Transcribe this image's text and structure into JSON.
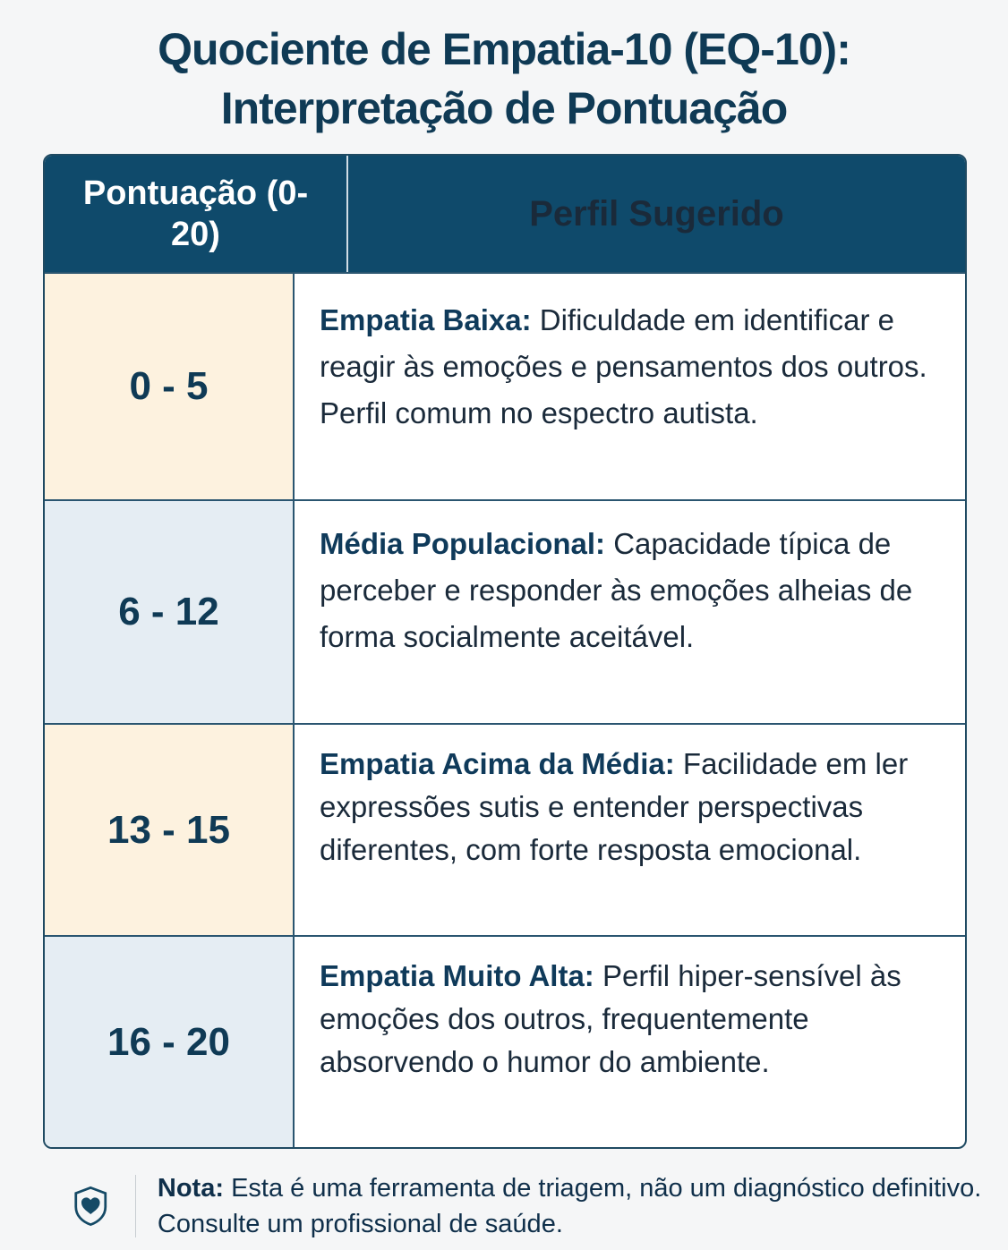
{
  "title": {
    "line1": "Quociente de Empatia-10 (EQ-10):",
    "line2": "Interpretação de Pontuação"
  },
  "table": {
    "headers": [
      "Pontuação (0-20)",
      "Perfil Sugerido"
    ],
    "rows": [
      {
        "score": "0 - 5",
        "label": "Empatia Baixa:",
        "text": "Dificuldade em identificar e reagir às emoções e pensamentos dos outros. Perfil comum no espectro autista.",
        "bg": "#fdf2df"
      },
      {
        "score": "6 - 12",
        "label": "Média Populacional:",
        "text": "Capacidade típica de perceber e responder às emoções alheias de forma socialmente aceitável.",
        "bg": "#e5edf3"
      },
      {
        "score": "13 - 15",
        "label": "Empatia Acima da Média:",
        "text": "Facilidade em ler expressões sutis e entender perspectivas diferentes, com forte resposta emocional.",
        "bg": "#fdf2df"
      },
      {
        "score": "16 - 20",
        "label": "Empatia Muito Alta:",
        "text": "Perfil hiper-sensível às emoções dos outros, frequentemente absorvendo o humor do ambiente.",
        "bg": "#e5edf3"
      }
    ]
  },
  "note": {
    "icon": "shield-heart-icon",
    "label": "Nota:",
    "text": "Esta é uma ferramenta de triagem, não um diagnóstico definitivo. Consulte um profissional de saúde."
  },
  "colors": {
    "header": "#0f4a6b",
    "cream": "#fdf2df",
    "blue": "#e5edf3"
  }
}
